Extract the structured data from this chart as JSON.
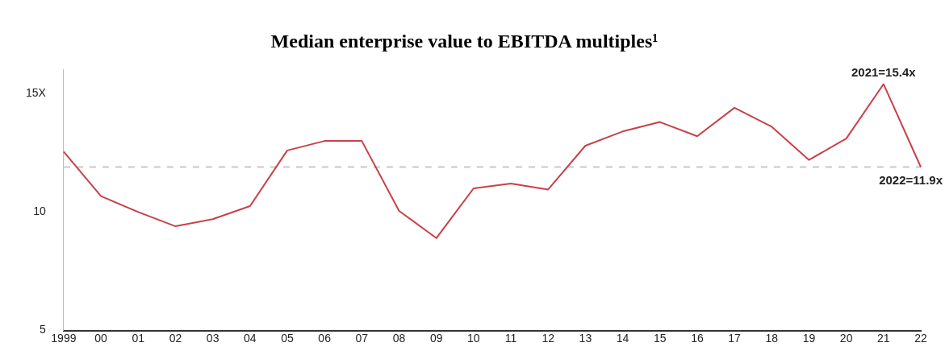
{
  "chart_data": {
    "type": "line",
    "title": "Median enterprise value to EBITDA multiples¹",
    "categories": [
      "1999",
      "00",
      "01",
      "02",
      "03",
      "04",
      "05",
      "06",
      "07",
      "08",
      "09",
      "10",
      "11",
      "12",
      "13",
      "14",
      "15",
      "16",
      "17",
      "18",
      "19",
      "20",
      "21",
      "22"
    ],
    "series": [
      {
        "color": "#c8404a",
        "values": [
          12.55,
          10.67,
          10.0,
          9.4,
          9.7,
          10.25,
          12.6,
          13.0,
          13.0,
          10.05,
          8.9,
          11.0,
          11.2,
          10.95,
          12.8,
          13.4,
          13.8,
          13.2,
          14.4,
          13.6,
          12.2,
          13.1,
          15.4,
          11.9
        ]
      }
    ],
    "ylim": [
      5,
      16
    ],
    "yticks": [
      5,
      10,
      {
        "value": 15,
        "label": "15X"
      }
    ],
    "ref_lines": [
      {
        "axis": "y",
        "value": 11.9,
        "color": "#c8c8c8",
        "line_style": "dashed"
      }
    ],
    "annotations": [
      {
        "text": "2021=15.4x",
        "x": "21",
        "y": 15.4
      },
      {
        "text": "2022=11.9x",
        "x": "22",
        "y": 11.9
      }
    ],
    "grid": false,
    "legend": false,
    "marker": "none",
    "line_style": "solid"
  }
}
